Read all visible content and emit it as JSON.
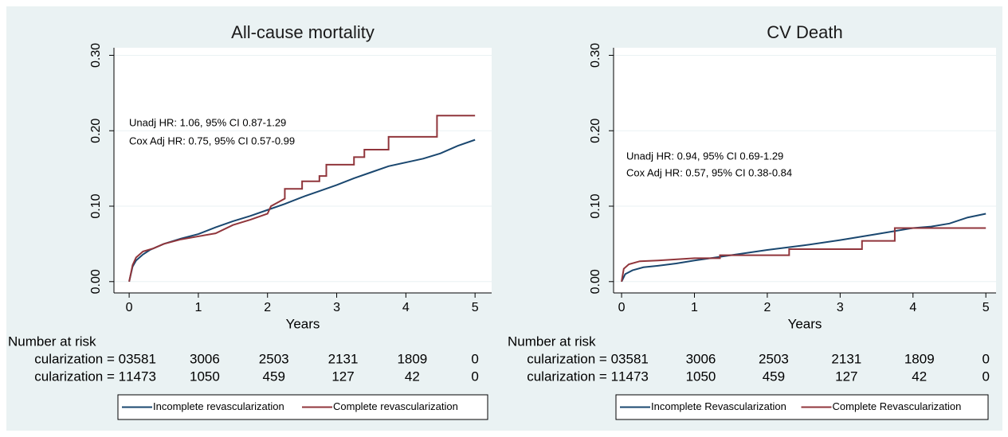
{
  "chart_data": [
    {
      "type": "line",
      "title": "All-cause mortality",
      "xlabel": "Years",
      "xlim": [
        -0.22,
        5.24
      ],
      "ylim": [
        -0.015,
        0.31
      ],
      "xticks": [
        0,
        1,
        2,
        3,
        4,
        5
      ],
      "yticks": [
        {
          "value": 0,
          "label": "0.00"
        },
        {
          "value": 0.1,
          "label": "0.10"
        },
        {
          "value": 0.2,
          "label": "0.20"
        },
        {
          "value": 0.3,
          "label": "0.30"
        }
      ],
      "grid": true,
      "annotations": [
        "Unadj HR: 1.06, 95% CI 0.87-1.29",
        "Cox Adj HR: 0.75, 95% CI 0.57-0.99"
      ],
      "series": [
        {
          "name": "Incomplete revascularization",
          "color": "#1a476f",
          "x": [
            0,
            0.05,
            0.1,
            0.2,
            0.3,
            0.5,
            0.75,
            1,
            1.25,
            1.5,
            1.75,
            2,
            2.25,
            2.5,
            2.75,
            3,
            3.25,
            3.5,
            3.75,
            4,
            4.25,
            4.5,
            4.75,
            5
          ],
          "values": [
            0,
            0.02,
            0.028,
            0.036,
            0.042,
            0.05,
            0.057,
            0.063,
            0.072,
            0.08,
            0.087,
            0.095,
            0.103,
            0.112,
            0.12,
            0.128,
            0.137,
            0.145,
            0.153,
            0.158,
            0.163,
            0.17,
            0.18,
            0.188
          ]
        },
        {
          "name": "Complete revascularization",
          "color": "#90353b",
          "x": [
            0,
            0.05,
            0.1,
            0.2,
            0.35,
            0.5,
            0.75,
            1,
            1.25,
            1.5,
            1.75,
            2,
            2.05,
            2.25,
            2.25,
            2.5,
            2.5,
            2.75,
            2.75,
            2.85,
            2.85,
            3.25,
            3.25,
            3.4,
            3.4,
            3.75,
            3.75,
            4.45,
            4.45,
            5
          ],
          "values": [
            0,
            0.022,
            0.032,
            0.04,
            0.044,
            0.05,
            0.056,
            0.06,
            0.064,
            0.075,
            0.082,
            0.09,
            0.1,
            0.11,
            0.123,
            0.123,
            0.133,
            0.133,
            0.14,
            0.14,
            0.155,
            0.155,
            0.165,
            0.165,
            0.175,
            0.175,
            0.192,
            0.192,
            0.22,
            0.22
          ]
        }
      ],
      "risk_table": {
        "title": "Number at risk",
        "rows": [
          {
            "label": "cularization = 0",
            "values": [
              3581,
              3006,
              2503,
              2131,
              1809,
              0
            ]
          },
          {
            "label": "cularization = 1",
            "values": [
              1473,
              1050,
              459,
              127,
              42,
              0
            ]
          }
        ]
      }
    },
    {
      "type": "line",
      "title": "CV Death",
      "xlabel": "Years",
      "xlim": [
        -0.11,
        5.14
      ],
      "ylim": [
        -0.015,
        0.31
      ],
      "xticks": [
        0,
        1,
        2,
        3,
        4,
        5
      ],
      "yticks": [
        {
          "value": 0,
          "label": "0.00"
        },
        {
          "value": 0.1,
          "label": "0.10"
        },
        {
          "value": 0.2,
          "label": "0.20"
        },
        {
          "value": 0.3,
          "label": "0.30"
        }
      ],
      "grid": true,
      "annotations": [
        "Unadj HR: 0.94, 95% CI 0.69-1.29",
        "Cox Adj HR: 0.57, 95% CI 0.38-0.84"
      ],
      "series": [
        {
          "name": "Incomplete Revascularization",
          "color": "#1a476f",
          "x": [
            0,
            0.05,
            0.15,
            0.3,
            0.5,
            0.75,
            1,
            1.5,
            2,
            2.5,
            3,
            3.5,
            4,
            4.25,
            4.5,
            4.75,
            5
          ],
          "values": [
            0,
            0.01,
            0.015,
            0.019,
            0.021,
            0.024,
            0.028,
            0.035,
            0.042,
            0.048,
            0.055,
            0.063,
            0.071,
            0.073,
            0.077,
            0.085,
            0.09
          ]
        },
        {
          "name": "Complete Revascularization",
          "color": "#90353b",
          "x": [
            0,
            0.03,
            0.1,
            0.25,
            0.5,
            1,
            1.35,
            1.35,
            2.3,
            2.3,
            3.3,
            3.3,
            3.75,
            3.75,
            5
          ],
          "values": [
            0,
            0.017,
            0.023,
            0.027,
            0.028,
            0.031,
            0.031,
            0.035,
            0.035,
            0.043,
            0.043,
            0.054,
            0.054,
            0.071,
            0.071
          ]
        }
      ],
      "risk_table": {
        "title": "Number at risk",
        "rows": [
          {
            "label": "cularization = 0",
            "values": [
              3581,
              3006,
              2503,
              2131,
              1809,
              0
            ]
          },
          {
            "label": "cularization = 1",
            "values": [
              1473,
              1050,
              459,
              127,
              42,
              0
            ]
          }
        ]
      }
    }
  ]
}
